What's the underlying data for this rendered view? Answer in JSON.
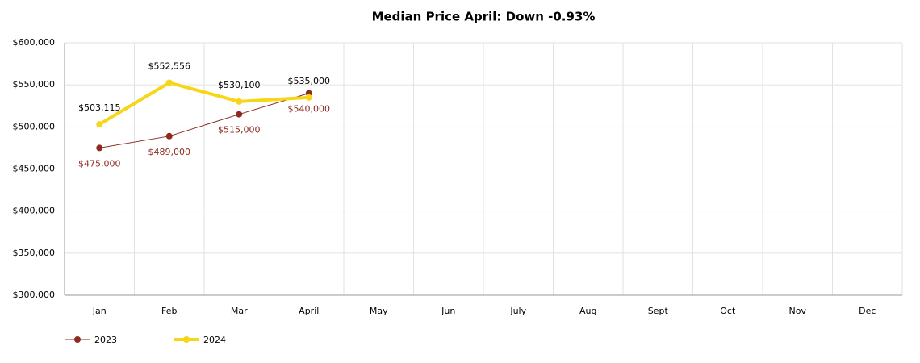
{
  "chart_data": {
    "type": "line",
    "title": "Median Price April: Down -0.93%",
    "categories": [
      "Jan",
      "Feb",
      "Mar",
      "April",
      "May",
      "Jun",
      "July",
      "Aug",
      "Sept",
      "Oct",
      "Nov",
      "Dec"
    ],
    "series": [
      {
        "name": "2023",
        "color": "#8e2b21",
        "values": [
          475000,
          489000,
          515000,
          540000,
          null,
          null,
          null,
          null,
          null,
          null,
          null,
          null
        ],
        "value_labels": [
          "$475,000",
          "$489,000",
          "$515,000",
          "$540,000",
          null,
          null,
          null,
          null,
          null,
          null,
          null,
          null
        ]
      },
      {
        "name": "2024",
        "color": "#f7d618",
        "values": [
          503115,
          552556,
          530100,
          535000,
          null,
          null,
          null,
          null,
          null,
          null,
          null,
          null
        ],
        "value_labels": [
          "$503,115",
          "$552,556",
          "$530,100",
          "$535,000",
          null,
          null,
          null,
          null,
          null,
          null,
          null,
          null
        ]
      }
    ],
    "ylim": [
      300000,
      600000
    ],
    "yticks": [
      {
        "value": 300000,
        "label": "$300,000"
      },
      {
        "value": 350000,
        "label": "$350,000"
      },
      {
        "value": 400000,
        "label": "$400,000"
      },
      {
        "value": 450000,
        "label": "$450,000"
      },
      {
        "value": 500000,
        "label": "$500,000"
      },
      {
        "value": 550000,
        "label": "$550,000"
      },
      {
        "value": 600000,
        "label": "$600,000"
      }
    ],
    "grid": true,
    "legend": "bottom-left"
  }
}
